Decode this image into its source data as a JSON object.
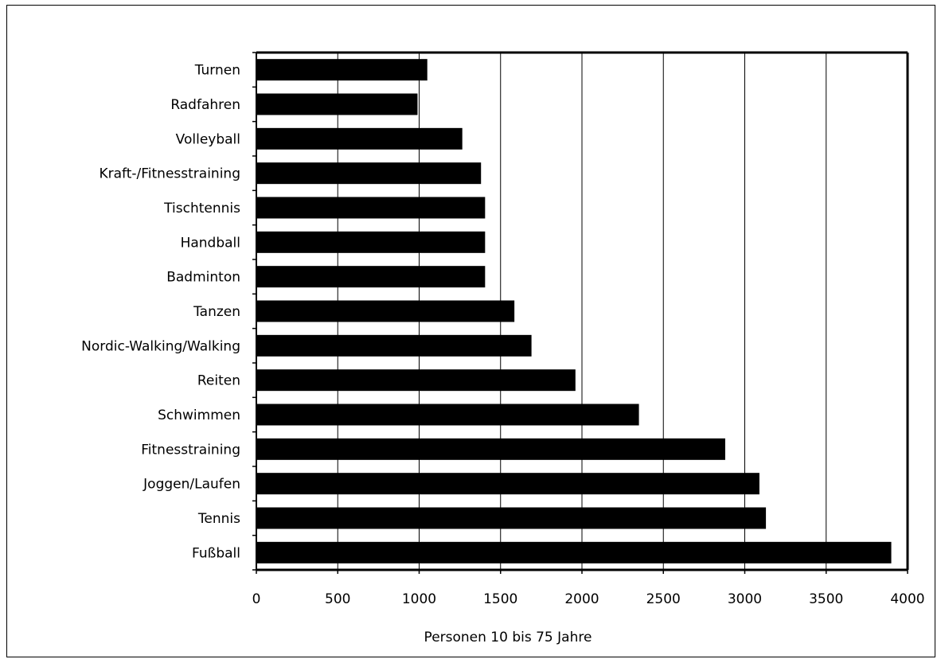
{
  "chart_data": {
    "type": "bar",
    "orientation": "horizontal",
    "categories": [
      "Turnen",
      "Radfahren",
      "Volleyball",
      "Kraft-/Fitnesstraining",
      "Tischtennis",
      "Handball",
      "Badminton",
      "Tanzen",
      "Nordic-Walking/Walking",
      "Reiten",
      "Schwimmen",
      "Fitnesstraining",
      "Joggen/Laufen",
      "Tennis",
      "Fußball"
    ],
    "values": [
      1050,
      990,
      1265,
      1380,
      1405,
      1405,
      1405,
      1585,
      1690,
      1960,
      2350,
      2880,
      3090,
      3130,
      3900
    ],
    "xlabel": "Personen 10 bis 75 Jahre",
    "ylabel": "",
    "title": "",
    "xlim": [
      0,
      4000
    ],
    "xticks": [
      0,
      500,
      1000,
      1500,
      2000,
      2500,
      3000,
      3500,
      4000
    ],
    "grid": "vertical",
    "bar_color": "#000000",
    "grid_color": "#000000"
  }
}
